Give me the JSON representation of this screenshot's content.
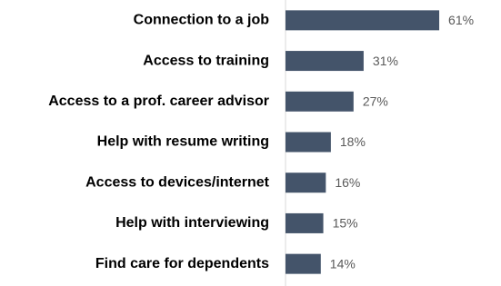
{
  "chart_data": {
    "type": "bar",
    "orientation": "horizontal",
    "categories": [
      "Connection to a job",
      "Access to training",
      "Access to a prof. career advisor",
      "Help with resume writing",
      "Access to devices/internet",
      "Help with interviewing",
      "Find care for dependents"
    ],
    "values": [
      61,
      31,
      27,
      18,
      16,
      15,
      14
    ],
    "value_labels": [
      "61%",
      "31%",
      "27%",
      "18%",
      "16%",
      "15%",
      "14%"
    ],
    "color": "#44546a",
    "xlim": [
      0,
      70
    ]
  }
}
